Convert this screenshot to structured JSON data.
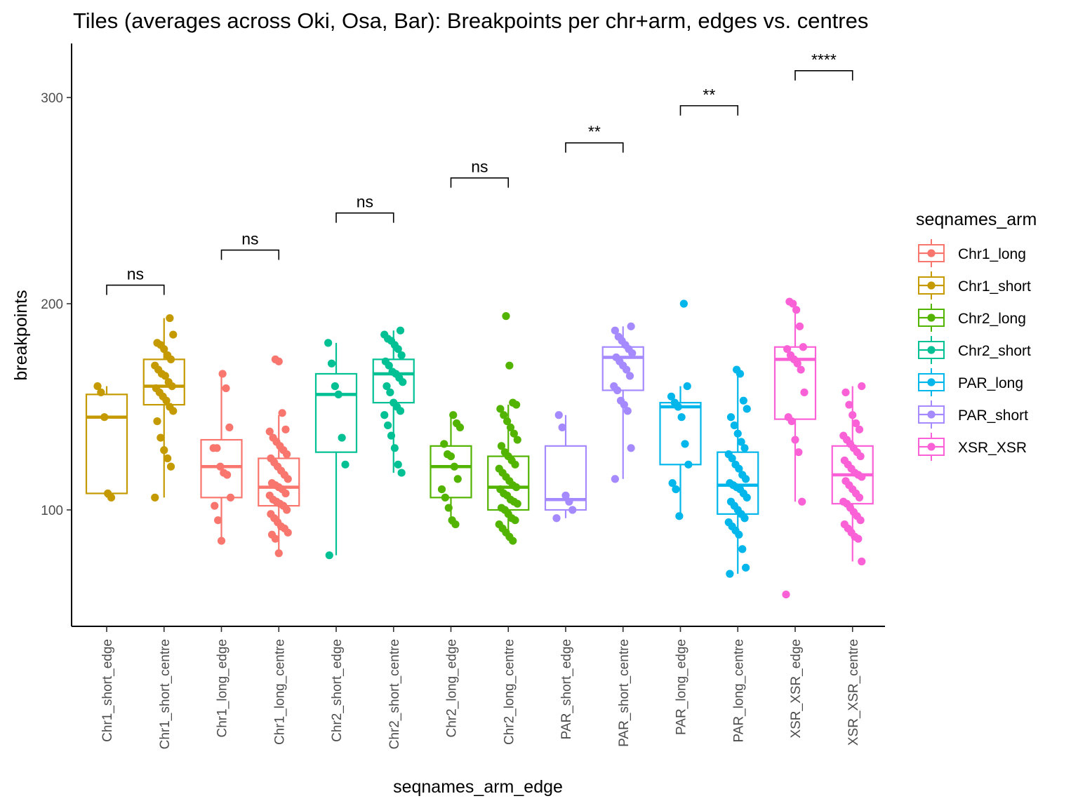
{
  "chart_data": {
    "type": "box",
    "title": "Tiles (averages across Oki, Osa, Bar): Breakpoints per chr+arm, edges vs. centres",
    "xlabel": "seqnames_arm_edge",
    "ylabel": "breakpoints",
    "ylim": [
      44,
      326
    ],
    "yticks": [
      100,
      200,
      300
    ],
    "grid": false,
    "legend": {
      "title": "seqnames_arm",
      "position": "right",
      "entries": [
        {
          "name": "Chr1_long",
          "color": "#F8766D"
        },
        {
          "name": "Chr1_short",
          "color": "#C49A00"
        },
        {
          "name": "Chr2_long",
          "color": "#53B400"
        },
        {
          "name": "Chr2_short",
          "color": "#00C094"
        },
        {
          "name": "PAR_long",
          "color": "#00B6EB"
        },
        {
          "name": "PAR_short",
          "color": "#A58AFF"
        },
        {
          "name": "XSR_XSR",
          "color": "#FB61D7"
        }
      ]
    },
    "categories": [
      "Chr1_short_edge",
      "Chr1_short_centre",
      "Chr1_long_edge",
      "Chr1_long_centre",
      "Chr2_short_edge",
      "Chr2_short_centre",
      "Chr2_long_edge",
      "Chr2_long_centre",
      "PAR_short_edge",
      "PAR_short_centre",
      "PAR_long_edge",
      "PAR_long_centre",
      "XSR_XSR_edge",
      "XSR_XSR_centre"
    ],
    "boxes": [
      {
        "category": "Chr1_short_edge",
        "group": "Chr1_short",
        "min": 106,
        "q1": 108,
        "median": 145,
        "q3": 156,
        "max": 160,
        "points": [
          160,
          157,
          145,
          108,
          106
        ]
      },
      {
        "category": "Chr1_short_centre",
        "group": "Chr1_short",
        "min": 106,
        "q1": 151,
        "median": 160,
        "q3": 173,
        "max": 193,
        "points": [
          193,
          185,
          181,
          180,
          178,
          175,
          173,
          170,
          168,
          166,
          165,
          162,
          160,
          159,
          157,
          155,
          153,
          150,
          148,
          143,
          135,
          129,
          125,
          121,
          106
        ]
      },
      {
        "category": "Chr1_long_edge",
        "group": "Chr1_long",
        "min": 85,
        "q1": 106,
        "median": 121,
        "q3": 134,
        "max": 166,
        "points": [
          166,
          159,
          140,
          130,
          130,
          121,
          118,
          117,
          106,
          102,
          95,
          85
        ]
      },
      {
        "category": "Chr1_long_centre",
        "group": "Chr1_long",
        "min": 79,
        "q1": 102,
        "median": 111,
        "q3": 125,
        "max": 146,
        "points": [
          173,
          172,
          147,
          139,
          138,
          135,
          133,
          131,
          129,
          127,
          125,
          123,
          121,
          119,
          117,
          115,
          113,
          112,
          111,
          110,
          108,
          107,
          105,
          104,
          103,
          102,
          100,
          98,
          96,
          94,
          92,
          91,
          89,
          88,
          86,
          79
        ]
      },
      {
        "category": "Chr2_short_edge",
        "group": "Chr2_short",
        "min": 78,
        "q1": 128,
        "median": 156,
        "q3": 166,
        "max": 181,
        "points": [
          181,
          171,
          160,
          156,
          135,
          122,
          78
        ]
      },
      {
        "category": "Chr2_short_centre",
        "group": "Chr2_short",
        "min": 118,
        "q1": 152,
        "median": 166,
        "q3": 173,
        "max": 187,
        "points": [
          187,
          185,
          183,
          182,
          180,
          178,
          175,
          172,
          170,
          167,
          166,
          164,
          162,
          160,
          157,
          152,
          150,
          148,
          146,
          141,
          136,
          130,
          122,
          118
        ]
      },
      {
        "category": "Chr2_long_edge",
        "group": "Chr2_long",
        "min": 93,
        "q1": 106,
        "median": 121,
        "q3": 131,
        "max": 146,
        "points": [
          146,
          142,
          140,
          132,
          127,
          126,
          121,
          115,
          110,
          106,
          101,
          95,
          93
        ]
      },
      {
        "category": "Chr2_long_centre",
        "group": "Chr2_long",
        "min": 85,
        "q1": 100,
        "median": 111,
        "q3": 126,
        "max": 151,
        "points": [
          194,
          170,
          152,
          151,
          149,
          146,
          143,
          140,
          137,
          134,
          131,
          128,
          126,
          124,
          122,
          120,
          118,
          116,
          114,
          112,
          111,
          110,
          108,
          107,
          105,
          104,
          103,
          101,
          100,
          98,
          96,
          95,
          93,
          91,
          89,
          87,
          85
        ]
      },
      {
        "category": "PAR_short_edge",
        "group": "PAR_short",
        "min": 96,
        "q1": 100,
        "median": 105,
        "q3": 131,
        "max": 146,
        "points": [
          146,
          140,
          107,
          104,
          100,
          96
        ]
      },
      {
        "category": "PAR_short_centre",
        "group": "PAR_short",
        "min": 115,
        "q1": 158,
        "median": 174,
        "q3": 179,
        "max": 189,
        "points": [
          189,
          187,
          184,
          182,
          180,
          178,
          176,
          174,
          172,
          170,
          168,
          165,
          160,
          158,
          153,
          151,
          148,
          130,
          115
        ]
      },
      {
        "category": "PAR_long_edge",
        "group": "PAR_long",
        "min": 97,
        "q1": 122,
        "median": 150,
        "q3": 152,
        "max": 160,
        "points": [
          200,
          160,
          155,
          152,
          150,
          145,
          132,
          122,
          113,
          110,
          97
        ]
      },
      {
        "category": "PAR_long_centre",
        "group": "PAR_long",
        "min": 69,
        "q1": 98,
        "median": 112,
        "q3": 128,
        "max": 168,
        "points": [
          168,
          166,
          153,
          149,
          145,
          141,
          137,
          133,
          130,
          127,
          125,
          122,
          120,
          117,
          115,
          113,
          112,
          111,
          110,
          108,
          106,
          104,
          102,
          100,
          98,
          96,
          94,
          92,
          90,
          88,
          81,
          72,
          69
        ]
      },
      {
        "category": "XSR_XSR_edge",
        "group": "XSR_XSR",
        "min": 104,
        "q1": 144,
        "median": 173,
        "q3": 179,
        "max": 201,
        "points": [
          201,
          200,
          197,
          189,
          179,
          178,
          175,
          173,
          171,
          168,
          157,
          145,
          143,
          134,
          128,
          104,
          59
        ]
      },
      {
        "category": "XSR_XSR_centre",
        "group": "XSR_XSR",
        "min": 75,
        "q1": 103,
        "median": 117,
        "q3": 131,
        "max": 160,
        "points": [
          160,
          157,
          151,
          146,
          142,
          139,
          136,
          134,
          132,
          130,
          128,
          126,
          124,
          122,
          120,
          118,
          117,
          116,
          114,
          112,
          110,
          108,
          106,
          104,
          103,
          101,
          99,
          97,
          95,
          93,
          91,
          89,
          87,
          86,
          75
        ]
      }
    ],
    "comparisons": [
      {
        "left": "Chr1_short_edge",
        "right": "Chr1_short_centre",
        "label": "ns",
        "y": 209
      },
      {
        "left": "Chr1_long_edge",
        "right": "Chr1_long_centre",
        "label": "ns",
        "y": 226
      },
      {
        "left": "Chr2_short_edge",
        "right": "Chr2_short_centre",
        "label": "ns",
        "y": 244
      },
      {
        "left": "Chr2_long_edge",
        "right": "Chr2_long_centre",
        "label": "ns",
        "y": 261
      },
      {
        "left": "PAR_short_edge",
        "right": "PAR_short_centre",
        "label": "**",
        "y": 278
      },
      {
        "left": "PAR_long_edge",
        "right": "PAR_long_centre",
        "label": "**",
        "y": 296
      },
      {
        "left": "XSR_XSR_edge",
        "right": "XSR_XSR_centre",
        "label": "****",
        "y": 313
      }
    ]
  }
}
